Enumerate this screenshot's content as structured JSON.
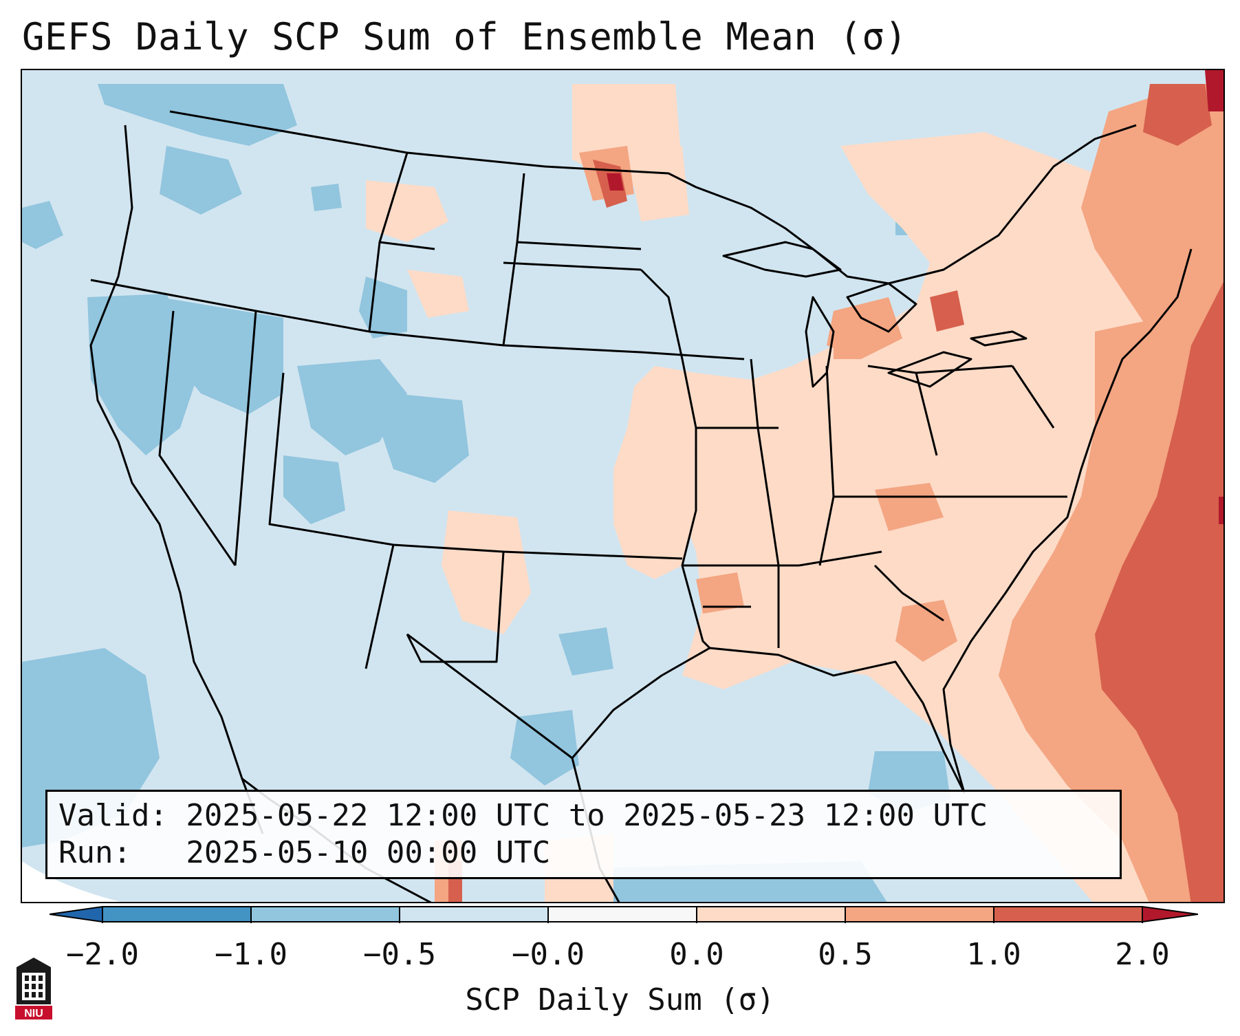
{
  "title": "GEFS Daily SCP Sum of Ensemble Mean (σ)",
  "info": {
    "valid_line": "Valid: 2025-05-22 12:00 UTC to 2025-05-23 12:00 UTC",
    "run_line": "Run:   2025-05-10 00:00 UTC"
  },
  "colorbar": {
    "label": "SCP Daily Sum (σ)",
    "ticks": [
      "−2.0",
      "−1.0",
      "−0.5",
      "−0.0",
      "0.0",
      "0.5",
      "1.0",
      "2.0"
    ],
    "bins": [
      {
        "range": "< -2.0",
        "color": "#2166ac"
      },
      {
        "range": "-2.0 to -1.0",
        "color": "#4393c3"
      },
      {
        "range": "-1.0 to -0.5",
        "color": "#92c5de"
      },
      {
        "range": "-0.5 to -0.0",
        "color": "#d1e5f0"
      },
      {
        "range": "-0.0 to 0.0",
        "color": "#f7f7f7"
      },
      {
        "range": "0.0 to 0.5",
        "color": "#fddbc7"
      },
      {
        "range": "0.5 to 1.0",
        "color": "#f4a582"
      },
      {
        "range": "1.0 to 2.0",
        "color": "#d6604d"
      },
      {
        "range": "> 2.0",
        "color": "#b2182b"
      }
    ]
  },
  "logo": {
    "text": "NIU"
  }
}
